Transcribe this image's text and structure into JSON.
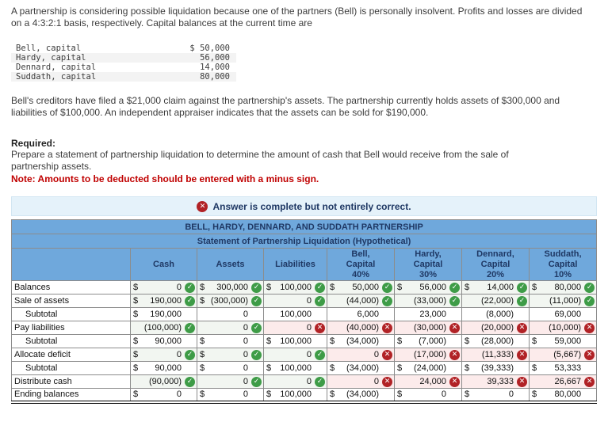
{
  "problem": {
    "intro": "A partnership is considering possible liquidation because one of the partners (Bell) is personally insolvent. Profits and losses are divided on a 4:3:2:1 basis, respectively. Capital balances at the current time are",
    "capitals": [
      {
        "name": "Bell, capital",
        "amount": "$ 50,000"
      },
      {
        "name": "Hardy, capital",
        "amount": "56,000"
      },
      {
        "name": "Dennard, capital",
        "amount": "14,000"
      },
      {
        "name": "Suddath, capital",
        "amount": "80,000"
      }
    ],
    "details": "Bell's creditors have filed a $21,000 claim against the partnership's assets. The partnership currently holds assets of $300,000 and liabilities of $100,000. An independent appraiser indicates that the assets can be sold for $190,000.",
    "required_label": "Required:",
    "required_text": "Prepare a statement of partnership liquidation to determine the amount of cash that Bell would receive from the sale of partnership assets.",
    "note_text": "Note: Amounts to be deducted should be entered with a minus sign."
  },
  "banner": {
    "text": "Answer is complete but not entirely correct."
  },
  "table": {
    "title": "BELL, HARDY, DENNARD, AND SUDDATH PARTNERSHIP",
    "subtitle": "Statement of Partnership Liquidation (Hypothetical)",
    "headers": [
      {
        "lines": [
          "Cash"
        ]
      },
      {
        "lines": [
          "Assets"
        ]
      },
      {
        "lines": [
          "Liabilities"
        ]
      },
      {
        "lines": [
          "Bell,",
          "Capital",
          "40%"
        ]
      },
      {
        "lines": [
          "Hardy,",
          "Capital",
          "30%"
        ]
      },
      {
        "lines": [
          "Dennard,",
          "Capital",
          "20%"
        ]
      },
      {
        "lines": [
          "Suddath,",
          "Capital",
          "10%"
        ]
      }
    ],
    "rows": [
      {
        "label": "Balances",
        "indent": false,
        "cells": [
          {
            "d": "$",
            "v": "0",
            "m": "ok"
          },
          {
            "d": "$",
            "v": "300,000",
            "m": "ok"
          },
          {
            "d": "$",
            "v": "100,000",
            "m": "ok"
          },
          {
            "d": "$",
            "v": "50,000",
            "m": "ok"
          },
          {
            "d": "$",
            "v": "56,000",
            "m": "ok"
          },
          {
            "d": "$",
            "v": "14,000",
            "m": "ok"
          },
          {
            "d": "$",
            "v": "80,000",
            "m": "ok"
          }
        ]
      },
      {
        "label": "Sale of assets",
        "indent": false,
        "cells": [
          {
            "d": "$",
            "v": "190,000",
            "m": "ok"
          },
          {
            "d": "$",
            "v": "(300,000)",
            "m": "ok"
          },
          {
            "d": "",
            "v": "0",
            "m": "ok"
          },
          {
            "d": "",
            "v": "(44,000)",
            "m": "ok"
          },
          {
            "d": "",
            "v": "(33,000)",
            "m": "ok"
          },
          {
            "d": "",
            "v": "(22,000)",
            "m": "ok"
          },
          {
            "d": "",
            "v": "(11,000)",
            "m": "ok"
          }
        ]
      },
      {
        "label": "Subtotal",
        "indent": true,
        "cells": [
          {
            "d": "$",
            "v": "190,000",
            "m": ""
          },
          {
            "d": "",
            "v": "0",
            "m": ""
          },
          {
            "d": "",
            "v": "100,000",
            "m": ""
          },
          {
            "d": "",
            "v": "6,000",
            "m": ""
          },
          {
            "d": "",
            "v": "23,000",
            "m": ""
          },
          {
            "d": "",
            "v": "(8,000)",
            "m": ""
          },
          {
            "d": "",
            "v": "69,000",
            "m": ""
          }
        ]
      },
      {
        "label": "Pay liabilities",
        "indent": false,
        "cells": [
          {
            "d": "",
            "v": "(100,000)",
            "m": "ok"
          },
          {
            "d": "",
            "v": "0",
            "m": "ok"
          },
          {
            "d": "",
            "v": "0",
            "m": "bad"
          },
          {
            "d": "",
            "v": "(40,000)",
            "m": "bad"
          },
          {
            "d": "",
            "v": "(30,000)",
            "m": "bad"
          },
          {
            "d": "",
            "v": "(20,000)",
            "m": "bad"
          },
          {
            "d": "",
            "v": "(10,000)",
            "m": "bad"
          }
        ]
      },
      {
        "label": "Subtotal",
        "indent": true,
        "cells": [
          {
            "d": "$",
            "v": "90,000",
            "m": ""
          },
          {
            "d": "$",
            "v": "0",
            "m": ""
          },
          {
            "d": "$",
            "v": "100,000",
            "m": ""
          },
          {
            "d": "$",
            "v": "(34,000)",
            "m": ""
          },
          {
            "d": "$",
            "v": "(7,000)",
            "m": ""
          },
          {
            "d": "$",
            "v": "(28,000)",
            "m": ""
          },
          {
            "d": "$",
            "v": "59,000",
            "m": ""
          }
        ]
      },
      {
        "label": "Allocate deficit",
        "indent": false,
        "cells": [
          {
            "d": "$",
            "v": "0",
            "m": "ok"
          },
          {
            "d": "$",
            "v": "0",
            "m": "ok"
          },
          {
            "d": "",
            "v": "0",
            "m": "ok"
          },
          {
            "d": "",
            "v": "0",
            "m": "bad"
          },
          {
            "d": "",
            "v": "(17,000)",
            "m": "bad"
          },
          {
            "d": "",
            "v": "(11,333)",
            "m": "bad"
          },
          {
            "d": "",
            "v": "(5,667)",
            "m": "bad"
          }
        ]
      },
      {
        "label": "Subtotal",
        "indent": true,
        "cells": [
          {
            "d": "$",
            "v": "90,000",
            "m": ""
          },
          {
            "d": "$",
            "v": "0",
            "m": ""
          },
          {
            "d": "$",
            "v": "100,000",
            "m": ""
          },
          {
            "d": "$",
            "v": "(34,000)",
            "m": ""
          },
          {
            "d": "$",
            "v": "(24,000)",
            "m": ""
          },
          {
            "d": "$",
            "v": "(39,333)",
            "m": ""
          },
          {
            "d": "$",
            "v": "53,333",
            "m": ""
          }
        ]
      },
      {
        "label": "Distribute cash",
        "indent": false,
        "cells": [
          {
            "d": "",
            "v": "(90,000)",
            "m": "ok"
          },
          {
            "d": "",
            "v": "0",
            "m": "ok"
          },
          {
            "d": "",
            "v": "0",
            "m": "ok"
          },
          {
            "d": "",
            "v": "0",
            "m": "bad"
          },
          {
            "d": "",
            "v": "24,000",
            "m": "bad"
          },
          {
            "d": "",
            "v": "39,333",
            "m": "bad"
          },
          {
            "d": "",
            "v": "26,667",
            "m": "bad"
          }
        ]
      },
      {
        "label": "Ending balances",
        "indent": false,
        "cells": [
          {
            "d": "$",
            "v": "0",
            "m": ""
          },
          {
            "d": "$",
            "v": "0",
            "m": ""
          },
          {
            "d": "$",
            "v": "100,000",
            "m": ""
          },
          {
            "d": "$",
            "v": "(34,000)",
            "m": ""
          },
          {
            "d": "$",
            "v": "0",
            "m": ""
          },
          {
            "d": "$",
            "v": "0",
            "m": ""
          },
          {
            "d": "$",
            "v": "80,000",
            "m": ""
          }
        ]
      }
    ]
  },
  "icons": {
    "correct": "check-in-green-circle",
    "incorrect": "x-in-red-circle"
  },
  "colors": {
    "header_blue": "#6FA8DC",
    "header_text": "#1F3864",
    "banner_bg": "#E5F2FA",
    "correct_green": "#3E9C47",
    "incorrect_red": "#B12226",
    "wrong_cell_bg": "#FCEBEB",
    "input_cell_bg": "#F2F6F1",
    "note_red": "#C00000"
  }
}
